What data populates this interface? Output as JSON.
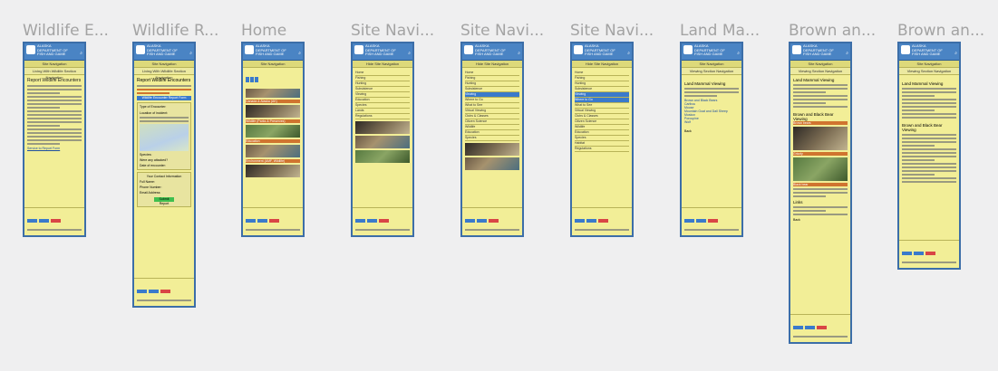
{
  "frames": [
    {
      "title": "Wildlife E..."
    },
    {
      "title": "Wildlife R..."
    },
    {
      "title": "Home"
    },
    {
      "title": "Site Navi..."
    },
    {
      "title": "Site Navi..."
    },
    {
      "title": "Site Navi..."
    },
    {
      "title": "Land Ma..."
    },
    {
      "title": "Brown an..."
    },
    {
      "title": "Brown an..."
    }
  ],
  "app": {
    "org": "ALASKA DEPARTMENT OF FISH AND GAME",
    "nav_button": "Site Navigation",
    "home_nav_button": "Hide Site Navigation",
    "living_with_wildlife": "Living With Wildlife Section Navigation",
    "viewing_nav": "Viewing Section Navigation"
  },
  "screens": {
    "wildlife_encounter": {
      "heading": "Report Wildlife Encounters",
      "link": "Service to Report Form"
    },
    "wildlife_report": {
      "heading": "Report Wildlife Encounters",
      "form_title": "Wildlife Encounter Report Form",
      "fields": [
        "Type of Encounter:",
        "Location of incident:",
        "Species:",
        "Were any attacked?",
        "Date of encounter:"
      ],
      "contact_title": "Your Contact Information",
      "contact_fields": [
        "Full Name:",
        "Phone Number:",
        "Email Address:"
      ],
      "submit": "Submit Report"
    },
    "home": {
      "sections": [
        "Canada & Alaska (AK)",
        "Wildlife (Parks & Preserves)",
        "Education",
        "Environment (AMF, Wildlife)"
      ]
    },
    "site_nav": {
      "items": [
        "Home",
        "Fishing",
        "Hunting",
        "Subsistence",
        "Viewing",
        "Education",
        "Species",
        "Lands",
        "Regulations"
      ],
      "subitems": [
        "Where to Go",
        "What to See",
        "Virtual Viewing",
        "Clubs & Classes",
        "Citizen Science"
      ],
      "lower": [
        "Wildlife",
        "Education",
        "Species",
        "Habitat",
        "Regulations"
      ]
    },
    "land_mammal": {
      "heading": "Land Mammal Viewing",
      "list": [
        "Brown and Black Bears",
        "Caribou",
        "Moose",
        "Mountain Goat and Dall Sheep",
        "Muskox",
        "Porcupine",
        "Wolf"
      ],
      "back": "Back"
    },
    "brown_black": {
      "heading": "Land Mammal Viewing",
      "sub": "Brown and Black Bear Viewing",
      "captions": [
        "Brown bears",
        "Grizzly",
        "Black bear"
      ],
      "links_title": "Links",
      "back": "Back"
    }
  }
}
